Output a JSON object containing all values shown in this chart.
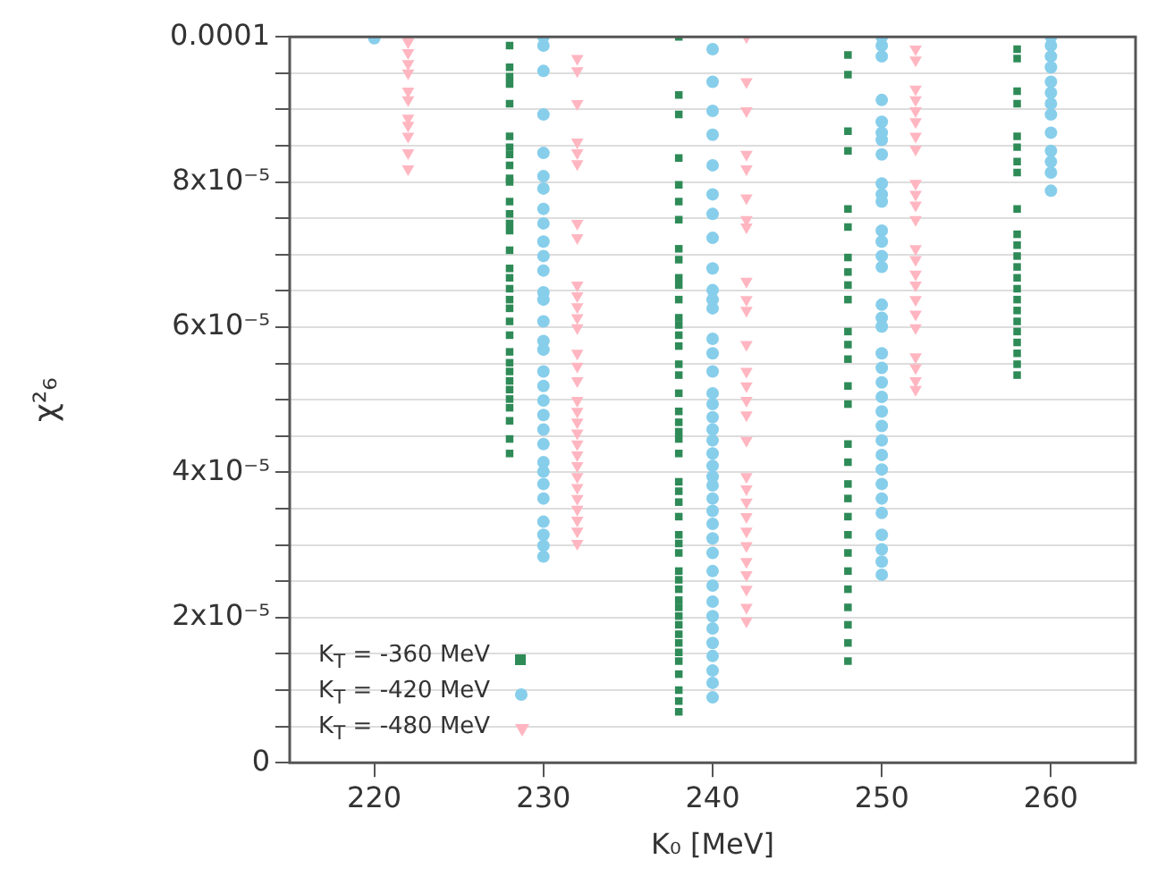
{
  "chart_data": {
    "type": "scatter",
    "xlabel": "K₀ [MeV]",
    "ylabel": "χ²₆",
    "xlim": [
      215,
      265
    ],
    "xticks": [
      220,
      230,
      240,
      250,
      260
    ],
    "ylim": [
      0,
      0.0001
    ],
    "yticks": [
      0,
      {
        "value": 5e-06,
        "label": null
      },
      {
        "value": 1e-05,
        "label": null
      },
      {
        "value": 1.5e-05,
        "label": null
      },
      {
        "value": 2e-05,
        "label": "2x10⁻⁵"
      },
      {
        "value": 2.5e-05,
        "label": null
      },
      {
        "value": 3e-05,
        "label": null
      },
      {
        "value": 3.5e-05,
        "label": null
      },
      {
        "value": 4e-05,
        "label": "4x10⁻⁵"
      },
      {
        "value": 4.5e-05,
        "label": null
      },
      {
        "value": 5e-05,
        "label": null
      },
      {
        "value": 5.5e-05,
        "label": null
      },
      {
        "value": 6e-05,
        "label": "6x10⁻⁵"
      },
      {
        "value": 6.5e-05,
        "label": null
      },
      {
        "value": 7e-05,
        "label": null
      },
      {
        "value": 7.5e-05,
        "label": null
      },
      {
        "value": 8e-05,
        "label": "8x10⁻⁵"
      },
      {
        "value": 8.5e-05,
        "label": null
      },
      {
        "value": 9e-05,
        "label": null
      },
      {
        "value": 9.5e-05,
        "label": null
      },
      0.0001
    ],
    "grid": "y",
    "legend": "bottom left",
    "series": [
      {
        "name": "K$_{T}$ = -360 MeV",
        "color": "#2e8b57",
        "marker": "square",
        "x": [
          228,
          228,
          228,
          228,
          228,
          228,
          228,
          228,
          228,
          228,
          228,
          228,
          228,
          228,
          228,
          228,
          228,
          228,
          228,
          228,
          228,
          228,
          228,
          228,
          228,
          228,
          228,
          228,
          228,
          228,
          228,
          228,
          228,
          238,
          238,
          238,
          238,
          238,
          238,
          238,
          238,
          238,
          238,
          238,
          238,
          238,
          238,
          238,
          238,
          238,
          238,
          238,
          238,
          238,
          238,
          238,
          238,
          238,
          238,
          238,
          238,
          238,
          238,
          238,
          238,
          238,
          238,
          238,
          238,
          238,
          238,
          238,
          238,
          238,
          238,
          238,
          238,
          238,
          238,
          248,
          248,
          248,
          248,
          248,
          248,
          248,
          248,
          248,
          248,
          248,
          248,
          248,
          248,
          248,
          248,
          248,
          248,
          248,
          248,
          248,
          248,
          248,
          248,
          248,
          248,
          248,
          248,
          258,
          258,
          258,
          258,
          258,
          258,
          258,
          258,
          258,
          258,
          258,
          258,
          258,
          258,
          258,
          258,
          258,
          258,
          258,
          258,
          258,
          258,
          258
        ],
        "values": [
          9.88e-05,
          9.58e-05,
          9.45e-05,
          9.35e-05,
          9.08e-05,
          8.63e-05,
          8.48e-05,
          8.38e-05,
          8.23e-05,
          8.05e-05,
          8e-05,
          7.73e-05,
          7.56e-05,
          7.43e-05,
          7.33e-05,
          7.06e-05,
          6.81e-05,
          6.68e-05,
          6.53e-05,
          6.38e-05,
          6.26e-05,
          6.08e-05,
          5.89e-05,
          5.66e-05,
          5.51e-05,
          5.39e-05,
          5.26e-05,
          5.14e-05,
          5.01e-05,
          4.89e-05,
          4.71e-05,
          4.46e-05,
          4.26e-05,
          0.0001,
          9.2e-05,
          8.93e-05,
          8.33e-05,
          7.96e-05,
          7.73e-05,
          7.48e-05,
          7.08e-05,
          6.93e-05,
          6.68e-05,
          6.58e-05,
          6.38e-05,
          6.13e-05,
          6.03e-05,
          5.89e-05,
          5.74e-05,
          5.49e-05,
          5.34e-05,
          5.09e-05,
          4.84e-05,
          4.69e-05,
          4.56e-05,
          4.46e-05,
          4.26e-05,
          3.87e-05,
          3.74e-05,
          3.59e-05,
          3.39e-05,
          3.14e-05,
          3.02e-05,
          2.89e-05,
          2.64e-05,
          2.52e-05,
          2.39e-05,
          2.24e-05,
          2.14e-05,
          2.02e-05,
          1.9e-05,
          1.77e-05,
          1.65e-05,
          1.52e-05,
          1.4e-05,
          1.22e-05,
          1e-05,
          8.5e-06,
          7e-06,
          9.75e-05,
          9.48e-05,
          8.7e-05,
          8.43e-05,
          7.63e-05,
          7.38e-05,
          6.96e-05,
          6.76e-05,
          6.58e-05,
          6.38e-05,
          5.94e-05,
          5.76e-05,
          5.56e-05,
          5.19e-05,
          4.94e-05,
          4.39e-05,
          4.14e-05,
          3.84e-05,
          3.64e-05,
          3.39e-05,
          3.14e-05,
          2.89e-05,
          2.64e-05,
          2.39e-05,
          2.14e-05,
          1.9e-05,
          1.65e-05,
          1.4e-05,
          9.83e-05,
          9.7e-05,
          9.25e-05,
          9.08e-05,
          8.63e-05,
          8.48e-05,
          8.28e-05,
          8.13e-05,
          7.63e-05,
          7.28e-05,
          7.13e-05,
          6.98e-05,
          6.83e-05,
          6.68e-05,
          6.53e-05,
          6.38e-05,
          6.23e-05,
          6.08e-05,
          5.94e-05,
          5.79e-05,
          5.64e-05,
          5.49e-05,
          5.34e-05
        ]
      },
      {
        "name": "K$_{T}$ = -420 MeV",
        "color": "#87ceeb",
        "marker": "circle",
        "x": [
          220,
          230,
          230,
          230,
          230,
          230,
          230,
          230,
          230,
          230,
          230,
          230,
          230,
          230,
          230,
          230,
          230,
          230,
          230,
          230,
          230,
          230,
          230,
          230,
          230,
          230,
          230,
          230,
          230,
          230,
          230,
          230,
          240,
          240,
          240,
          240,
          240,
          240,
          240,
          240,
          240,
          240,
          240,
          240,
          240,
          240,
          240,
          240,
          240,
          240,
          240,
          240,
          240,
          240,
          240,
          240,
          240,
          240,
          240,
          240,
          240,
          240,
          240,
          240,
          240,
          240,
          240,
          240,
          240,
          240,
          240,
          250,
          250,
          250,
          250,
          250,
          250,
          250,
          250,
          250,
          250,
          250,
          250,
          250,
          250,
          250,
          250,
          250,
          250,
          250,
          250,
          250,
          250,
          250,
          250,
          250,
          250,
          250,
          250,
          250,
          250,
          250,
          250,
          250,
          250,
          260,
          260,
          260,
          260,
          260,
          260,
          260,
          260,
          260,
          260,
          260,
          260,
          260
        ],
        "values": [
          9.98e-05,
          0.0001,
          9.88e-05,
          9.53e-05,
          8.93e-05,
          8.4e-05,
          8.08e-05,
          7.91e-05,
          7.63e-05,
          7.43e-05,
          7.18e-05,
          6.98e-05,
          6.78e-05,
          6.48e-05,
          6.38e-05,
          6.08e-05,
          5.81e-05,
          5.69e-05,
          5.39e-05,
          5.19e-05,
          4.99e-05,
          4.79e-05,
          4.59e-05,
          4.39e-05,
          4.14e-05,
          4.01e-05,
          3.84e-05,
          3.64e-05,
          3.32e-05,
          3.14e-05,
          2.99e-05,
          2.84e-05,
          9.83e-05,
          9.38e-05,
          8.98e-05,
          8.65e-05,
          8.23e-05,
          7.83e-05,
          7.56e-05,
          7.23e-05,
          6.81e-05,
          6.51e-05,
          6.38e-05,
          6.26e-05,
          5.84e-05,
          5.64e-05,
          5.39e-05,
          5.09e-05,
          4.94e-05,
          4.76e-05,
          4.59e-05,
          4.44e-05,
          4.26e-05,
          4.09e-05,
          3.94e-05,
          3.82e-05,
          3.64e-05,
          3.47e-05,
          3.29e-05,
          3.09e-05,
          2.89e-05,
          2.64e-05,
          2.44e-05,
          2.22e-05,
          2.02e-05,
          1.85e-05,
          1.65e-05,
          1.47e-05,
          1.27e-05,
          1.1e-05,
          9e-06,
          0.0001,
          9.88e-05,
          9.73e-05,
          9.13e-05,
          8.83e-05,
          8.68e-05,
          8.58e-05,
          8.38e-05,
          7.98e-05,
          7.83e-05,
          7.73e-05,
          7.33e-05,
          7.18e-05,
          6.98e-05,
          6.83e-05,
          6.31e-05,
          6.13e-05,
          6.01e-05,
          5.64e-05,
          5.44e-05,
          5.24e-05,
          5.04e-05,
          4.84e-05,
          4.64e-05,
          4.44e-05,
          4.24e-05,
          4.04e-05,
          3.84e-05,
          3.64e-05,
          3.44e-05,
          3.14e-05,
          2.94e-05,
          2.77e-05,
          2.59e-05,
          0.0001,
          9.88e-05,
          9.73e-05,
          9.58e-05,
          9.38e-05,
          9.23e-05,
          9.08e-05,
          8.93e-05,
          8.68e-05,
          8.43e-05,
          8.28e-05,
          8.13e-05,
          7.88e-05
        ]
      },
      {
        "name": "K$_{T}$ = -480 MeV",
        "color": "#ffb6c1",
        "marker": "triangle",
        "x": [
          222,
          222,
          222,
          222,
          222,
          222,
          222,
          222,
          222,
          222,
          222,
          222,
          232,
          232,
          232,
          232,
          232,
          232,
          232,
          232,
          232,
          232,
          232,
          232,
          232,
          232,
          232,
          232,
          232,
          232,
          232,
          232,
          232,
          232,
          232,
          232,
          232,
          232,
          232,
          232,
          232,
          232,
          242,
          242,
          242,
          242,
          242,
          242,
          242,
          242,
          242,
          242,
          242,
          242,
          242,
          242,
          242,
          242,
          242,
          242,
          242,
          242,
          242,
          242,
          242,
          242,
          242,
          242,
          242,
          242,
          252,
          252,
          252,
          252,
          252,
          252,
          252,
          252,
          252,
          252,
          252,
          252,
          252,
          252,
          252,
          252,
          252,
          252,
          252,
          252,
          252,
          252,
          252
        ],
        "values": [
          0.0001,
          9.93e-05,
          9.78e-05,
          9.63e-05,
          9.5e-05,
          9.25e-05,
          9.13e-05,
          8.88e-05,
          8.78e-05,
          8.63e-05,
          8.4e-05,
          8.18e-05,
          9.7e-05,
          9.53e-05,
          9.08e-05,
          8.55e-05,
          8.4e-05,
          8.25e-05,
          7.43e-05,
          7.23e-05,
          6.58e-05,
          6.43e-05,
          6.28e-05,
          6.13e-05,
          5.99e-05,
          5.64e-05,
          5.46e-05,
          5.26e-05,
          4.99e-05,
          4.84e-05,
          4.69e-05,
          4.54e-05,
          4.39e-05,
          4.24e-05,
          4.09e-05,
          3.94e-05,
          3.79e-05,
          3.64e-05,
          3.49e-05,
          3.34e-05,
          3.19e-05,
          3.02e-05,
          0.0001,
          9.38e-05,
          8.98e-05,
          8.38e-05,
          8.18e-05,
          7.78e-05,
          7.48e-05,
          7.38e-05,
          6.63e-05,
          6.38e-05,
          6.23e-05,
          5.76e-05,
          5.39e-05,
          5.19e-05,
          4.99e-05,
          4.79e-05,
          4.44e-05,
          3.94e-05,
          3.77e-05,
          3.59e-05,
          3.39e-05,
          3.19e-05,
          2.99e-05,
          2.77e-05,
          2.59e-05,
          2.39e-05,
          2.14e-05,
          1.95e-05,
          9.83e-05,
          9.68e-05,
          9.28e-05,
          9.13e-05,
          8.98e-05,
          8.83e-05,
          8.63e-05,
          8.45e-05,
          7.98e-05,
          7.83e-05,
          7.68e-05,
          7.48e-05,
          7.08e-05,
          6.93e-05,
          6.73e-05,
          6.58e-05,
          6.38e-05,
          6.18e-05,
          5.99e-05,
          5.59e-05,
          5.44e-05,
          5.26e-05,
          5.14e-05
        ]
      }
    ]
  }
}
